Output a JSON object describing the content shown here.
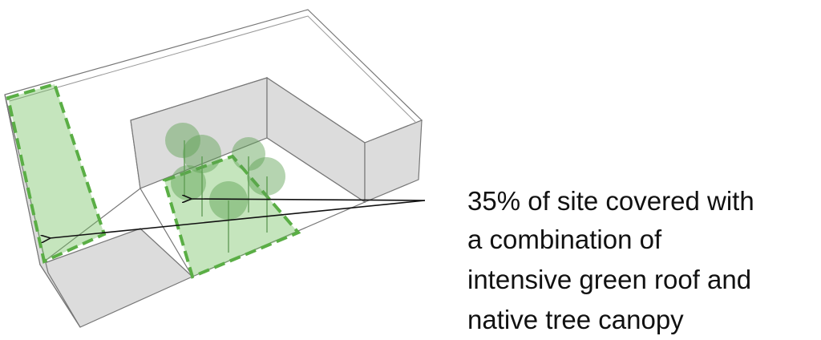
{
  "annotation": {
    "lines": [
      "35% of site covered with",
      "a combination of",
      "intensive green roof and",
      "native tree canopy"
    ]
  }
}
